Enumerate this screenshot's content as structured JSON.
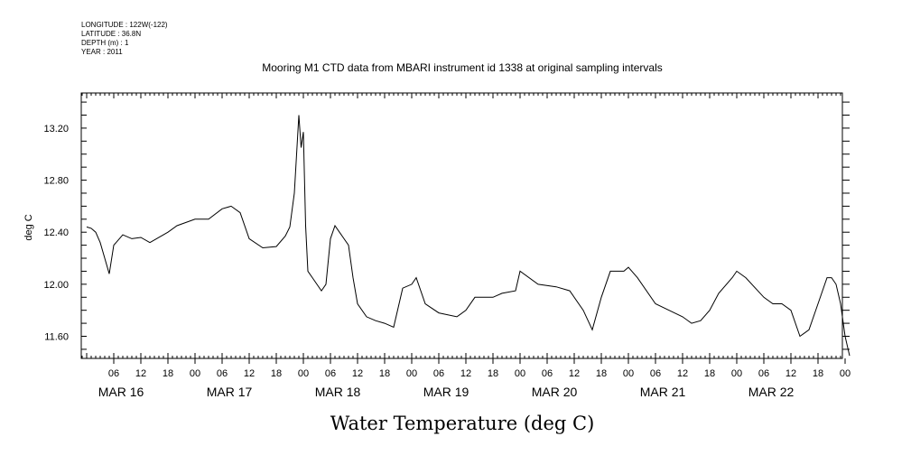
{
  "meta": {
    "longitude": "LONGITUDE : 122W(-122)",
    "latitude": "LATITUDE : 36.8N",
    "depth": "DEPTH (m) : 1",
    "year": "YEAR : 2011"
  },
  "chart_data": {
    "type": "line",
    "title": "Mooring M1 CTD data from MBARI instrument id 1338 at original sampling intervals",
    "xlabel": "Water Temperature (deg C)",
    "ylabel": "deg C",
    "ylim": [
      11.43,
      13.47
    ],
    "y_ticks": [
      "13.20",
      "12.80",
      "12.40",
      "12.00",
      "11.60"
    ],
    "x_hour_ticks": [
      "06",
      "12",
      "18",
      "00",
      "06",
      "12",
      "18",
      "00",
      "06",
      "12",
      "18",
      "00",
      "06",
      "12",
      "18",
      "00",
      "06",
      "12",
      "18",
      "00",
      "06",
      "12",
      "18",
      "00",
      "06",
      "12",
      "18",
      "00"
    ],
    "x_date_labels": [
      "MAR 16",
      "MAR 17",
      "MAR 18",
      "MAR 19",
      "MAR 20",
      "MAR 21",
      "MAR 22"
    ],
    "grid": false,
    "series": [
      {
        "x": [
          "MAR 16 00:00",
          "MAR 16 01:00",
          "MAR 16 02:00",
          "MAR 16 03:00",
          "MAR 16 04:00",
          "MAR 16 05:00",
          "MAR 16 06:00",
          "MAR 16 08:00",
          "MAR 16 10:00",
          "MAR 16 12:00",
          "MAR 16 14:00",
          "MAR 16 18:00",
          "MAR 16 20:00",
          "MAR 17 00:00",
          "MAR 17 03:00",
          "MAR 17 06:00",
          "MAR 17 08:00",
          "MAR 17 10:00",
          "MAR 17 12:00",
          "MAR 17 15:00",
          "MAR 17 18:00",
          "MAR 17 20:00",
          "MAR 17 21:00",
          "MAR 17 22:00",
          "MAR 17 23:00",
          "MAR 17 23:30",
          "MAR 18 00:00",
          "MAR 18 00:30",
          "MAR 18 01:00",
          "MAR 18 02:00",
          "MAR 18 03:00",
          "MAR 18 04:00",
          "MAR 18 05:00",
          "MAR 18 06:00",
          "MAR 18 07:00",
          "MAR 18 08:00",
          "MAR 18 09:00",
          "MAR 18 10:00",
          "MAR 18 11:00",
          "MAR 18 12:00",
          "MAR 18 14:00",
          "MAR 18 16:00",
          "MAR 18 18:00",
          "MAR 18 20:00",
          "MAR 18 22:00",
          "MAR 19 00:00",
          "MAR 19 01:00",
          "MAR 19 03:00",
          "MAR 19 06:00",
          "MAR 19 10:00",
          "MAR 19 12:00",
          "MAR 19 14:00",
          "MAR 19 18:00",
          "MAR 19 20:00",
          "MAR 19 23:00",
          "MAR 20 00:00",
          "MAR 20 04:00",
          "MAR 20 08:00",
          "MAR 20 11:00",
          "MAR 20 14:00",
          "MAR 20 16:00",
          "MAR 20 18:00",
          "MAR 20 20:00",
          "MAR 20 23:00",
          "MAR 21 00:00",
          "MAR 21 02:00",
          "MAR 21 06:00",
          "MAR 21 09:00",
          "MAR 21 12:00",
          "MAR 21 14:00",
          "MAR 21 16:00",
          "MAR 21 18:00",
          "MAR 21 20:00",
          "MAR 21 23:00",
          "MAR 22 00:00",
          "MAR 22 02:00",
          "MAR 22 06:00",
          "MAR 22 08:00",
          "MAR 22 10:00",
          "MAR 22 12:00",
          "MAR 22 14:00",
          "MAR 22 16:00",
          "MAR 22 18:00",
          "MAR 22 20:00",
          "MAR 22 21:00",
          "MAR 22 22:00",
          "MAR 22 23:00",
          "MAR 23 00:00",
          "MAR 23 01:00"
        ],
        "values": [
          12.44,
          12.43,
          12.4,
          12.32,
          12.2,
          12.08,
          12.3,
          12.38,
          12.35,
          12.36,
          12.32,
          12.4,
          12.45,
          12.5,
          12.5,
          12.58,
          12.6,
          12.55,
          12.35,
          12.28,
          12.29,
          12.37,
          12.44,
          12.7,
          13.3,
          13.05,
          13.17,
          12.45,
          12.1,
          12.05,
          12.0,
          11.95,
          12.0,
          12.35,
          12.45,
          12.4,
          12.35,
          12.3,
          12.05,
          11.85,
          11.75,
          11.72,
          11.7,
          11.67,
          11.97,
          12.0,
          12.05,
          11.85,
          11.78,
          11.75,
          11.8,
          11.9,
          11.9,
          11.93,
          11.95,
          12.1,
          12.0,
          11.98,
          11.95,
          11.8,
          11.65,
          11.9,
          12.1,
          12.1,
          12.13,
          12.05,
          11.85,
          11.8,
          11.75,
          11.7,
          11.72,
          11.8,
          11.93,
          12.05,
          12.1,
          12.05,
          11.9,
          11.85,
          11.85,
          11.8,
          11.6,
          11.65,
          11.85,
          12.05,
          12.05,
          12.0,
          11.85,
          11.6,
          11.45
        ]
      }
    ]
  }
}
